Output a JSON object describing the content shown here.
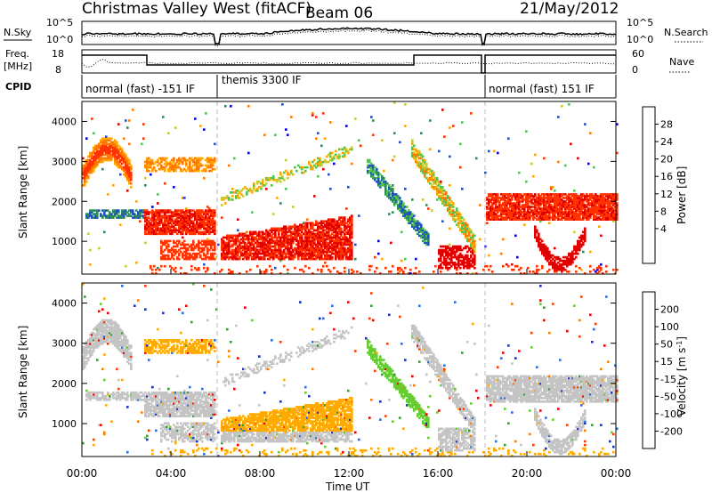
{
  "header": {
    "title": "Christmas Valley West (fitACF)",
    "beam": "Beam 06",
    "date": "21/May/2012"
  },
  "top_panels": {
    "nsky_label": "N.Sky",
    "nsearch_label": "N.Search",
    "nsky_ticks": [
      "10^5",
      "10^0"
    ],
    "nsearch_ticks": [
      "10^5",
      "10^0"
    ],
    "freq_label": [
      "Freq.",
      "[MHz]"
    ],
    "freq_ticks": [
      "18",
      "8"
    ],
    "nave_label": "Nave",
    "nave_ticks": [
      "60",
      "0"
    ],
    "cpid_label": "CPID",
    "cpid_segments": [
      "normal (fast) -151 IF",
      "themis 3300 IF",
      "normal (fast) 151 IF"
    ]
  },
  "power_panel": {
    "ylabel": "Slant Range [km]",
    "yticks": [
      "4000",
      "3000",
      "2000",
      "1000"
    ],
    "colorbar_label": "Power [dB]",
    "colorbar_ticks": [
      "28",
      "24",
      "20",
      "16",
      "12",
      "8",
      "4"
    ],
    "colors": [
      "#0000e0",
      "#2050c0",
      "#2e8b57",
      "#52c252",
      "#c8c832",
      "#ffa500",
      "#ff7800",
      "#ff3200",
      "#e00000"
    ]
  },
  "velocity_panel": {
    "ylabel": "Slant Range [km]",
    "yticks": [
      "4000",
      "3000",
      "2000",
      "1000"
    ],
    "colorbar_label": "Velocity [m s^-1]",
    "colorbar_ticks": [
      "200",
      "100",
      "50",
      "15",
      "-15",
      "-50",
      "-100",
      "-200"
    ],
    "colors": [
      "#1a2fbf",
      "#2a6fdc",
      "#3a9a3a",
      "#66cc33",
      "#c4c4c4",
      "#ffaa00",
      "#ff7a00",
      "#ff3a00",
      "#ee0000"
    ]
  },
  "xaxis": {
    "label": "Time UT",
    "ticks": [
      "00:00",
      "04:00",
      "08:00",
      "12:00",
      "16:00",
      "20:00",
      "00:00"
    ]
  },
  "chart_data": {
    "type": "heatmap",
    "title": "Christmas Valley West (fitACF)",
    "xlabel": "Time UT",
    "ylabel": "Slant Range [km]",
    "xlim_hours": [
      0,
      24
    ],
    "ylim_km": [
      180,
      4500
    ],
    "mode_changes_hours": [
      6.1,
      18.05
    ],
    "features": [
      {
        "name": "early-arc",
        "t": [
          0.0,
          2.2
        ],
        "range_km": [
          2300,
          3500
        ]
      },
      {
        "name": "band-1700",
        "t": [
          0.2,
          2.8
        ],
        "range_km": [
          1550,
          1800
        ]
      },
      {
        "name": "band-1500",
        "t": [
          2.8,
          6.0
        ],
        "range_km": [
          1100,
          1800
        ]
      },
      {
        "name": "band-3000",
        "t": [
          2.8,
          6.0
        ],
        "range_km": [
          2700,
          3100
        ]
      },
      {
        "name": "morning-low",
        "t": [
          6.2,
          12.1
        ],
        "range_km": [
          500,
          1700
        ]
      },
      {
        "name": "diagonal-1",
        "t": [
          12.8,
          15.6
        ],
        "range_km": [
          1000,
          3000
        ]
      },
      {
        "name": "late-arc",
        "t": [
          14.8,
          17.6
        ],
        "range_km": [
          700,
          3400
        ]
      },
      {
        "name": "evening-band",
        "t": [
          18.1,
          24.0
        ],
        "range_km": [
          1500,
          2200
        ]
      },
      {
        "name": "dip-2100",
        "t": [
          20.3,
          22.6
        ],
        "range_km": [
          300,
          1200
        ]
      }
    ]
  }
}
